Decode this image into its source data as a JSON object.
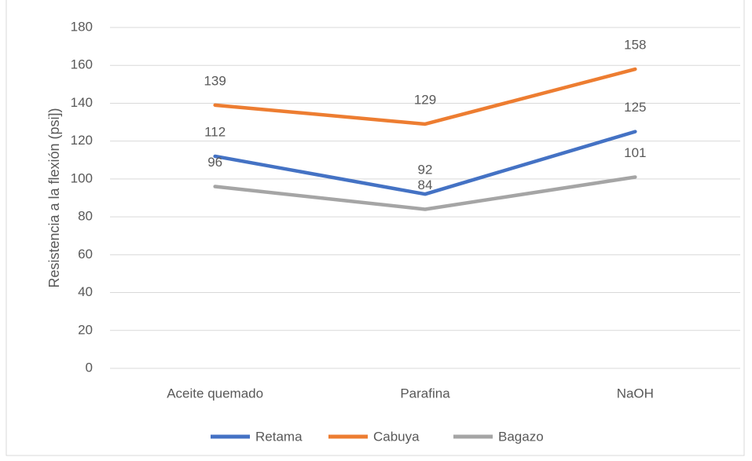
{
  "chart_data": {
    "type": "line",
    "y_label": "Resistencia a la flexión (psi])",
    "categories": [
      "Aceite quemado",
      "Parafina",
      "NaOH"
    ],
    "series": [
      {
        "name": "Retama",
        "color": "#4472c4",
        "values": [
          112,
          92,
          125
        ]
      },
      {
        "name": "Cabuya",
        "color": "#ed7d31",
        "values": [
          139,
          129,
          158
        ]
      },
      {
        "name": "Bagazo",
        "color": "#a5a5a5",
        "values": [
          96,
          84,
          101
        ]
      }
    ],
    "ylim": [
      0,
      180
    ],
    "yticks": [
      0,
      20,
      40,
      60,
      80,
      100,
      120,
      140,
      160,
      180
    ],
    "grid": true,
    "legend": "bottom"
  }
}
